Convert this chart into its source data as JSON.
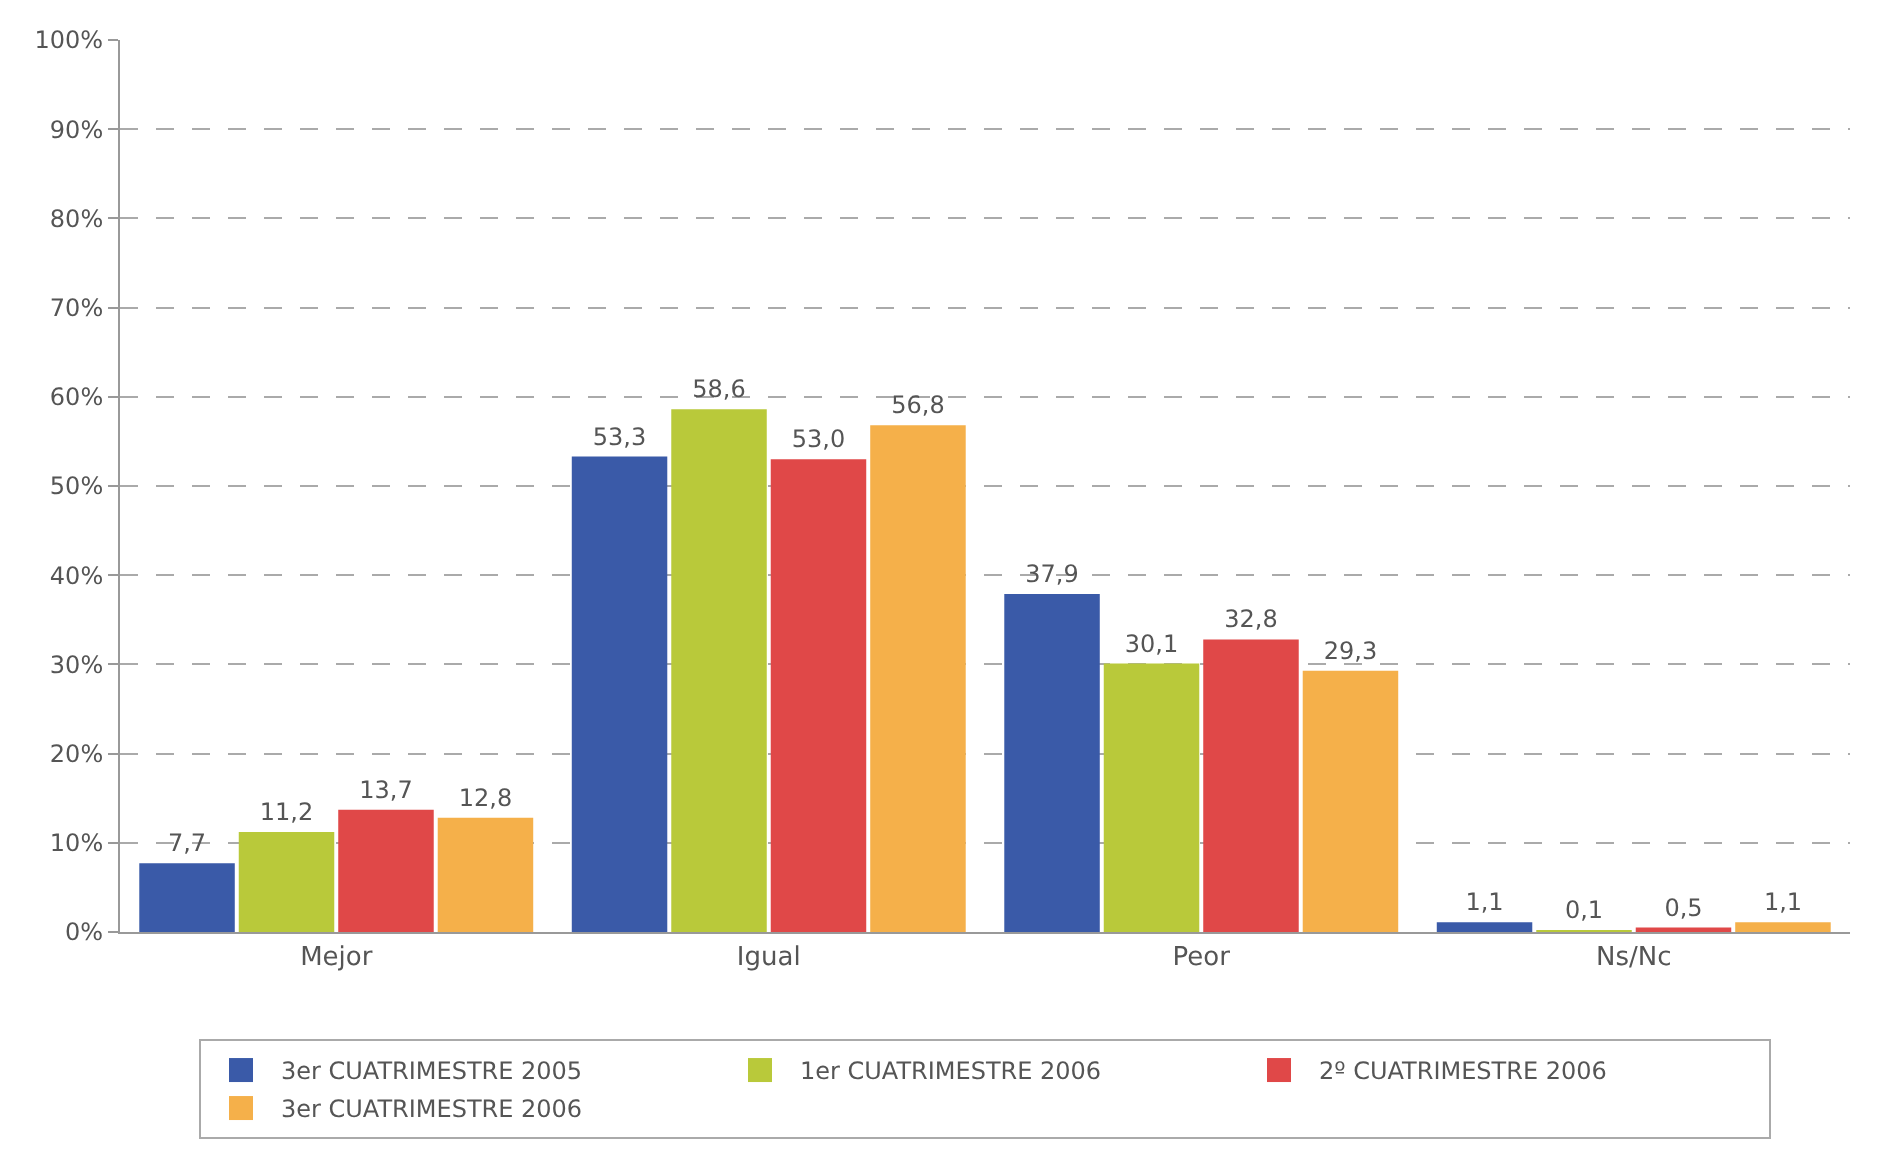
{
  "chart_data": {
    "type": "bar",
    "categories": [
      "Mejor",
      "Igual",
      "Peor",
      "Ns/Nc"
    ],
    "series": [
      {
        "name": "3er CUATRIMESTRE 2005",
        "color": "#3a5aa8",
        "values": [
          7.7,
          53.3,
          37.9,
          1.1
        ],
        "value_labels": [
          "7,7",
          "53,3",
          "37,9",
          "1,1"
        ]
      },
      {
        "name": "1er CUATRIMESTRE 2006",
        "color": "#b9c93a",
        "values": [
          11.2,
          58.6,
          30.1,
          0.1
        ],
        "value_labels": [
          "11,2",
          "58,6",
          "30,1",
          "0,1"
        ]
      },
      {
        "name": "2º CUATRIMESTRE 2006",
        "color": "#e04848",
        "values": [
          13.7,
          53.0,
          32.8,
          0.5
        ],
        "value_labels": [
          "13,7",
          "53,0",
          "32,8",
          "0,5"
        ]
      },
      {
        "name": "3er CUATRIMESTRE 2006",
        "color": "#f5b04a",
        "values": [
          12.8,
          56.8,
          29.3,
          1.1
        ],
        "value_labels": [
          "12,8",
          "56,8",
          "29,3",
          "1,1"
        ]
      }
    ],
    "ylim": [
      0,
      100
    ],
    "yticks": [
      {
        "value": 0,
        "label": "0%"
      },
      {
        "value": 10,
        "label": "10%"
      },
      {
        "value": 20,
        "label": "20%"
      },
      {
        "value": 30,
        "label": "30%"
      },
      {
        "value": 40,
        "label": "40%"
      },
      {
        "value": 50,
        "label": "50%"
      },
      {
        "value": 60,
        "label": "60%"
      },
      {
        "value": 70,
        "label": "70%"
      },
      {
        "value": 80,
        "label": "80%"
      },
      {
        "value": 90,
        "label": "90%"
      },
      {
        "value": 100,
        "label": "100%"
      }
    ],
    "grid": "y",
    "legend": "bottom"
  }
}
